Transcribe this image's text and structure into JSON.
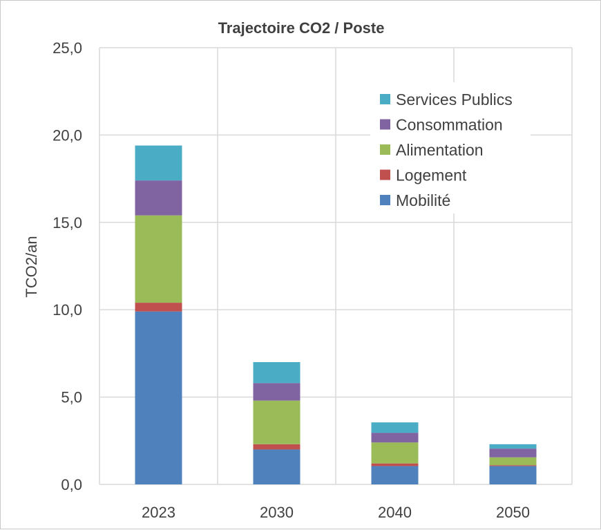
{
  "chart_data": {
    "type": "bar",
    "stacked": true,
    "title": "Trajectoire CO2 / Poste",
    "xlabel": "",
    "ylabel": "TCO2/an",
    "ylim": [
      0,
      25
    ],
    "yticks": [
      "0,0",
      "5,0",
      "10,0",
      "15,0",
      "20,0",
      "25,0"
    ],
    "ytick_values": [
      0,
      5,
      10,
      15,
      20,
      25
    ],
    "grid": true,
    "legend_position": "top-right",
    "categories": [
      "2023",
      "2030",
      "2040",
      "2050"
    ],
    "series": [
      {
        "name": "Mobilité",
        "color": "#4f81bd",
        "values": [
          9.9,
          2.0,
          1.05,
          1.05
        ]
      },
      {
        "name": "Logement",
        "color": "#c0504d",
        "values": [
          0.5,
          0.3,
          0.15,
          0.05
        ]
      },
      {
        "name": "Alimentation",
        "color": "#9bbb59",
        "values": [
          5.0,
          2.5,
          1.2,
          0.45
        ]
      },
      {
        "name": "Consommation",
        "color": "#8064a2",
        "values": [
          2.0,
          1.0,
          0.55,
          0.5
        ]
      },
      {
        "name": "Services Publics",
        "color": "#4bacc6",
        "values": [
          2.0,
          1.2,
          0.6,
          0.25
        ]
      }
    ]
  }
}
